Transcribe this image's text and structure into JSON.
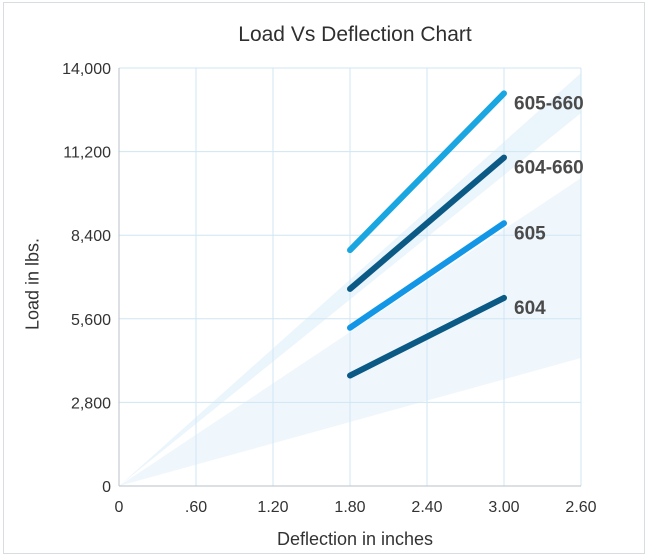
{
  "chart_data": {
    "type": "line",
    "title": "Load Vs Deflection Chart",
    "xlabel": "Deflection in inches",
    "ylabel": "Load in lbs.",
    "x_tick_labels": [
      "0",
      ".60",
      "1.20",
      "1.80",
      "2.40",
      "3.00",
      "2.60"
    ],
    "y_ticks": [
      0,
      2800,
      5600,
      8400,
      11200,
      14000
    ],
    "y_tick_labels": [
      "0",
      "2,800",
      "5,600",
      "8,400",
      "11,200",
      "14,000"
    ],
    "ylim": [
      0,
      14000
    ],
    "grid": true,
    "series": [
      {
        "name": "605-660",
        "color": "#1aa6e0",
        "points": [
          [
            1.8,
            7900
          ],
          [
            3.0,
            13150
          ]
        ]
      },
      {
        "name": "604-660",
        "color": "#0b5a86",
        "points": [
          [
            1.8,
            6600
          ],
          [
            3.0,
            11000
          ]
        ]
      },
      {
        "name": "605",
        "color": "#1496e6",
        "points": [
          [
            1.8,
            5300
          ],
          [
            3.0,
            8800
          ]
        ]
      },
      {
        "name": "604",
        "color": "#0b5a86",
        "points": [
          [
            1.8,
            3700
          ],
          [
            3.0,
            6300
          ]
        ]
      }
    ],
    "colors": {
      "grid": "#cfe6f3",
      "band": "#e8f3fb",
      "text": "#333333",
      "series_label": "#4a4a4a"
    }
  }
}
